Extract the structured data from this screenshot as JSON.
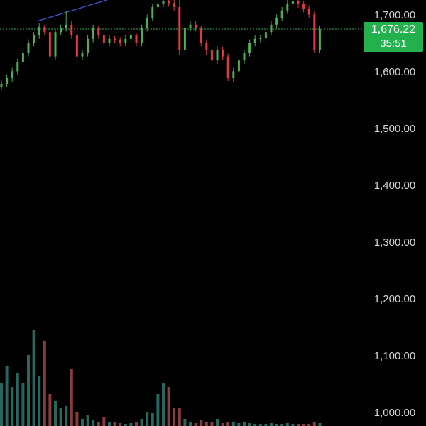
{
  "chart_data": {
    "type": "candlestick",
    "open": [
      1575,
      1580,
      1590,
      1602,
      1618,
      1634,
      1652,
      1665,
      1680,
      1671,
      1628,
      1671,
      1678,
      1684,
      1665,
      1628,
      1634,
      1659,
      1678,
      1665,
      1652,
      1659,
      1657,
      1652,
      1659,
      1665,
      1652,
      1678,
      1696,
      1715,
      1721,
      1725,
      1722,
      1715,
      1640,
      1678,
      1684,
      1678,
      1652,
      1640,
      1621,
      1640,
      1628,
      1590,
      1602,
      1621,
      1634,
      1652,
      1659,
      1660,
      1671,
      1684,
      1696,
      1709,
      1721,
      1725,
      1720,
      1712,
      1702,
      1640
    ],
    "high": [
      1586,
      1596,
      1608,
      1624,
      1640,
      1658,
      1671,
      1686,
      1684,
      1676,
      1677,
      1684,
      1708,
      1690,
      1670,
      1640,
      1665,
      1684,
      1682,
      1670,
      1665,
      1664,
      1662,
      1665,
      1671,
      1670,
      1684,
      1702,
      1721,
      1728,
      1732,
      1732,
      1728,
      1730,
      1684,
      1690,
      1690,
      1682,
      1658,
      1645,
      1646,
      1645,
      1633,
      1608,
      1627,
      1640,
      1658,
      1665,
      1666,
      1677,
      1690,
      1702,
      1715,
      1727,
      1732,
      1731,
      1726,
      1718,
      1707,
      1682
    ],
    "low": [
      1569,
      1574,
      1584,
      1596,
      1612,
      1628,
      1646,
      1659,
      1665,
      1622,
      1622,
      1665,
      1672,
      1659,
      1612,
      1622,
      1628,
      1653,
      1659,
      1646,
      1646,
      1651,
      1646,
      1646,
      1653,
      1646,
      1646,
      1672,
      1690,
      1709,
      1715,
      1716,
      1709,
      1630,
      1634,
      1672,
      1672,
      1646,
      1630,
      1612,
      1615,
      1622,
      1585,
      1584,
      1596,
      1615,
      1628,
      1646,
      1653,
      1654,
      1665,
      1678,
      1690,
      1703,
      1715,
      1714,
      1706,
      1696,
      1634,
      1634
    ],
    "close": [
      1580,
      1590,
      1602,
      1618,
      1634,
      1652,
      1665,
      1680,
      1671,
      1628,
      1671,
      1678,
      1684,
      1665,
      1628,
      1634,
      1659,
      1678,
      1665,
      1652,
      1659,
      1657,
      1652,
      1659,
      1665,
      1652,
      1678,
      1696,
      1715,
      1721,
      1725,
      1722,
      1715,
      1640,
      1678,
      1684,
      1678,
      1652,
      1640,
      1621,
      1640,
      1628,
      1590,
      1602,
      1621,
      1634,
      1652,
      1659,
      1660,
      1671,
      1684,
      1696,
      1709,
      1721,
      1725,
      1720,
      1712,
      1702,
      1640,
      1676.22
    ],
    "volume": [
      60,
      85,
      55,
      75,
      60,
      100,
      135,
      70,
      120,
      45,
      35,
      25,
      28,
      80,
      20,
      10,
      15,
      8,
      5,
      12,
      6,
      5,
      4,
      3,
      4,
      6,
      10,
      20,
      18,
      45,
      60,
      55,
      25,
      25,
      10,
      5,
      4,
      8,
      6,
      5,
      10,
      4,
      6,
      5,
      4,
      5,
      4,
      3,
      3,
      3,
      4,
      3,
      3,
      4,
      3,
      3,
      3,
      3,
      5,
      4
    ],
    "vlim": [
      0,
      200
    ],
    "up_color": "#4caf50",
    "down_color": "#e53935",
    "volume_up_color": "#26675f",
    "volume_down_color": "#8a3b3b",
    "ylim": [
      977.5,
      1727.5
    ],
    "yticks": [
      {
        "value": 1000,
        "label": "1,000.00"
      },
      {
        "value": 1100,
        "label": "1,100.00"
      },
      {
        "value": 1200,
        "label": "1,200.00"
      },
      {
        "value": 1300,
        "label": "1,300.00"
      },
      {
        "value": 1400,
        "label": "1,400.00"
      },
      {
        "value": 1500,
        "label": "1,500.00"
      },
      {
        "value": 1600,
        "label": "1,600.00"
      },
      {
        "value": 1700,
        "label": "1,700.00"
      }
    ],
    "last_price": {
      "value": 1676.22,
      "label": "1,676.22"
    },
    "countdown": "35:51",
    "last_price_color": "#22b14c"
  }
}
